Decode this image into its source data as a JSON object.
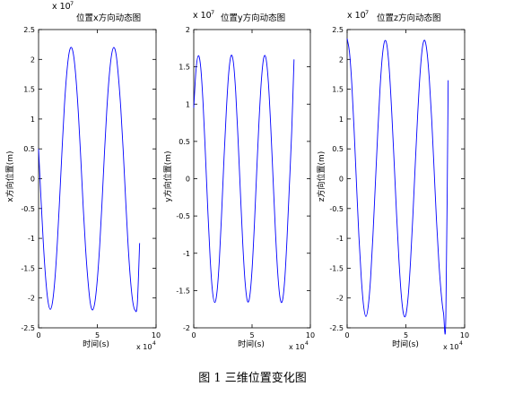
{
  "caption": "图 1  三维位置变化图",
  "chart_data": [
    {
      "type": "line",
      "title": "位置x方向动态图",
      "title_exponent": "x 10",
      "title_exponent_power": "7",
      "xlabel": "时间(s)",
      "ylabel": "x方向位置(m)",
      "xlim": [
        0,
        100000
      ],
      "ylim": [
        -25000000,
        25000000
      ],
      "x_tick_labels": [
        "0",
        "5",
        "10"
      ],
      "y_tick_labels": [
        "2.5",
        "2",
        "1.5",
        "1",
        "0.5",
        "0",
        "-0.5",
        "-1",
        "-1.5",
        "-2",
        "-2.5"
      ],
      "x_exponent": "x 10",
      "x_exponent_power": "4",
      "line_color": "#0000ff",
      "x": [
        0,
        2000,
        4000,
        6000,
        8000,
        10000,
        12000,
        14000,
        16000,
        18000,
        20000,
        22000,
        24000,
        26000,
        28000,
        30000,
        32000,
        34000,
        36000,
        38000,
        40000,
        42000,
        44000,
        46000,
        48000,
        50000,
        52000,
        54000,
        56000,
        58000,
        60000,
        62000,
        64000,
        66000,
        68000,
        70000,
        72000,
        74000,
        76000,
        78000,
        80000,
        82000,
        84000,
        86000
      ],
      "y": [
        5000000,
        -3100000,
        -10600000,
        -16600000,
        -20500000,
        -21900000,
        -20500000,
        -16600000,
        -10600000,
        -3100000,
        4900000,
        12300000,
        17700000,
        21100000,
        22000000,
        20400000,
        16400000,
        10500000,
        3100000,
        -4800000,
        -11700000,
        -17000000,
        -20800000,
        -22000000,
        -20600000,
        -16900000,
        -11300000,
        -4000000,
        4000000,
        11300000,
        16900000,
        20600000,
        22000000,
        20800000,
        17000000,
        11700000,
        4800000,
        -3100000,
        -10500000,
        -16400000,
        -20400000,
        -22000000,
        -21100000,
        -10800000
      ]
    },
    {
      "type": "line",
      "title": "位置y方向动态图",
      "title_exponent": "x 10",
      "title_exponent_power": "7",
      "xlabel": "时间(s)",
      "ylabel": "y方向位置(m)",
      "xlim": [
        0,
        100000
      ],
      "ylim": [
        -20000000,
        20000000
      ],
      "x_tick_labels": [
        "0",
        "5",
        "10"
      ],
      "y_tick_labels": [
        "2",
        "1.5",
        "1",
        "0.5",
        "0",
        "-0.5",
        "-1",
        "-1.5",
        "-2"
      ],
      "x_exponent": "x 10",
      "x_exponent_power": "4",
      "line_color": "#0000ff",
      "x": [
        0,
        2000,
        4000,
        6000,
        8000,
        10000,
        12000,
        14000,
        16000,
        18000,
        20000,
        22000,
        24000,
        26000,
        28000,
        30000,
        32000,
        34000,
        36000,
        38000,
        40000,
        42000,
        44000,
        46000,
        48000,
        50000,
        52000,
        54000,
        56000,
        58000,
        60000,
        62000,
        64000,
        66000,
        68000,
        70000,
        72000,
        74000,
        76000,
        78000,
        80000,
        82000,
        84000,
        86000
      ],
      "y": [
        9500000,
        14700000,
        16500000,
        14900000,
        10100000,
        3300000,
        -4000000,
        -10500000,
        -15000000,
        -16600000,
        -15100000,
        -10800000,
        -4300000,
        2900000,
        9300000,
        14200000,
        16500000,
        15600000,
        11600000,
        5300000,
        -1800000,
        -8600000,
        -13800000,
        -16400000,
        -15800000,
        -12200000,
        -6200000,
        1000000,
        7800000,
        13200000,
        16200000,
        16100000,
        12900000,
        7100000,
        100000,
        -6900000,
        -12600000,
        -16000000,
        -16400000,
        -13600000,
        -8000000,
        -1000000,
        6300000,
        16000000
      ]
    },
    {
      "type": "line",
      "title": "位置z方向动态图",
      "title_exponent": "x 10",
      "title_exponent_power": "7",
      "xlabel": "时间(s)",
      "ylabel": "z方向位置(m)",
      "xlim": [
        0,
        100000
      ],
      "ylim": [
        -25000000,
        25000000
      ],
      "x_tick_labels": [
        "0",
        "5",
        "10"
      ],
      "y_tick_labels": [
        "2.5",
        "2",
        "1.5",
        "1",
        "0.5",
        "0",
        "-0.5",
        "-1",
        "-1.5",
        "-2",
        "-2.5"
      ],
      "x_exponent": "x 10",
      "x_exponent_power": "4",
      "line_color": "#0000ff",
      "x": [
        0,
        2000,
        4000,
        6000,
        8000,
        10000,
        12000,
        14000,
        16000,
        18000,
        20000,
        22000,
        24000,
        26000,
        28000,
        30000,
        32000,
        34000,
        36000,
        38000,
        40000,
        42000,
        44000,
        46000,
        48000,
        50000,
        52000,
        54000,
        56000,
        58000,
        60000,
        62000,
        64000,
        66000,
        68000,
        70000,
        72000,
        74000,
        76000,
        78000,
        80000,
        82000,
        84000,
        86000
      ],
      "y": [
        23500000,
        21200000,
        15800000,
        7900000,
        -1000000,
        -9600000,
        -16500000,
        -21300000,
        -23100000,
        -21300000,
        -16600000,
        -9400000,
        -1000000,
        7500000,
        15100000,
        20600000,
        23100000,
        22200000,
        17900000,
        11000000,
        2800000,
        -5700000,
        -13300000,
        -19300000,
        -22700000,
        -22800000,
        -19600000,
        -13700000,
        -6000000,
        2500000,
        10600000,
        17400000,
        21900000,
        23200000,
        21200000,
        16500000,
        9800000,
        1600000,
        -6800000,
        -13800000,
        -19100000,
        -22500000,
        -23200000,
        16500000
      ]
    }
  ]
}
